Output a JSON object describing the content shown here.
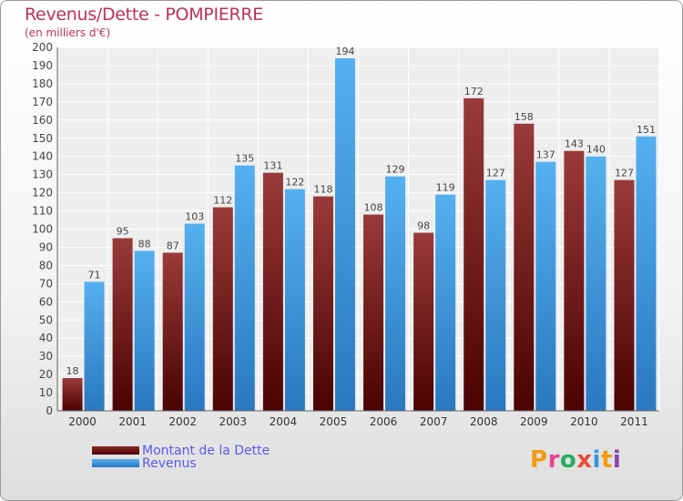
{
  "chart_data": {
    "type": "bar",
    "title": "Revenus/Dette - POMPIERRE",
    "subtitle": "(en milliers d'€)",
    "categories": [
      "2000",
      "2001",
      "2002",
      "2003",
      "2004",
      "2005",
      "2006",
      "2007",
      "2008",
      "2009",
      "2010",
      "2011"
    ],
    "series": [
      {
        "name": "Montant de la Dette",
        "color": "#6b0f0f",
        "values": [
          18,
          95,
          87,
          112,
          131,
          118,
          108,
          98,
          172,
          158,
          143,
          127
        ]
      },
      {
        "name": "Revenus",
        "color": "#3a94dc",
        "values": [
          71,
          88,
          103,
          135,
          122,
          194,
          129,
          119,
          127,
          137,
          140,
          151
        ]
      }
    ],
    "ylim": [
      0,
      200
    ],
    "ytick_step": 10,
    "grid": true,
    "legend_position": "bottom-left"
  },
  "logo": {
    "text": "Proxiti",
    "colors": [
      "#f39c12",
      "#e84393",
      "#27ae60",
      "#e74c3c",
      "#3a94dc",
      "#f39c12",
      "#8e44ad"
    ]
  }
}
